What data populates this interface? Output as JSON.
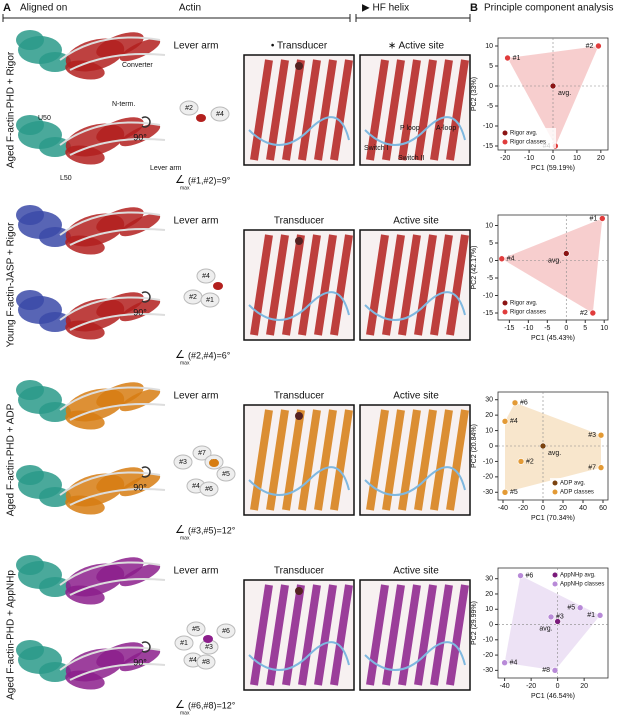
{
  "header": {
    "panel_a": "A",
    "aligned_on": "Aligned on",
    "actin": "Actin",
    "hf_helix": "▶ HF helix",
    "panel_b": "B",
    "pca": "Principle component analysis"
  },
  "rows": [
    {
      "label": "Aged F-actin-PHD + Rigor",
      "lever_arm": "Lever arm",
      "transducer": "• Transducer",
      "active_site": "∗ Active site",
      "rotation": "90°",
      "angle_symbol": "∠",
      "angle_sub": "max",
      "angle": "(#1,#2)=9°",
      "lever_classes": [
        "#2",
        "#4"
      ],
      "annotations": [
        "Converter",
        "N-term.",
        "U50",
        "L50",
        "Lever arm",
        "Switch I",
        "P loop",
        "A-loop",
        "Switch II"
      ]
    },
    {
      "label": "Young F-actin-JASP + Rigor",
      "lever_arm": "Lever arm",
      "transducer": "Transducer",
      "active_site": "Active site",
      "rotation": "90°",
      "angle_symbol": "∠",
      "angle_sub": "max",
      "angle": "(#2,#4)=6°",
      "lever_classes": [
        "#4",
        "#2",
        "#1"
      ],
      "annotations": []
    },
    {
      "label": "Aged F-actin-PHD + ADP",
      "lever_arm": "Lever arm",
      "transducer": "Transducer",
      "active_site": "Active site",
      "rotation": "90°",
      "angle_symbol": "∠",
      "angle_sub": "max",
      "angle": "(#3,#5)=12°",
      "lever_classes": [
        "#7",
        "#3",
        "#1",
        "#5",
        "#4",
        "#6"
      ],
      "annotations": []
    },
    {
      "label": "Aged F-actin-PHD + AppNHp",
      "lever_arm": "Lever arm",
      "transducer": "Transducer",
      "active_site": "Active site",
      "rotation": "90°",
      "angle_symbol": "∠",
      "angle_sub": "max",
      "angle": "(#6,#8)=12°",
      "lever_classes": [
        "#5",
        "#6",
        "#1",
        "#3",
        "#4",
        "#8"
      ],
      "annotations": []
    }
  ],
  "chart_data": [
    {
      "type": "scatter",
      "xlabel": "PC1 (59.19%)",
      "ylabel": "PC2 (33%)",
      "xlim": [
        -23,
        23
      ],
      "ylim": [
        -16,
        12
      ],
      "xticks": [
        -20,
        -10,
        0,
        10,
        20
      ],
      "yticks": [
        10,
        5,
        0,
        -5,
        -10,
        -15
      ],
      "legend": "lower left",
      "series": [
        {
          "name": "Rigor avg.",
          "color": "#8b1414",
          "x": [
            0
          ],
          "values": [
            0
          ],
          "labels": [
            "avg."
          ]
        },
        {
          "name": "Rigor classes",
          "color": "#e03c3c",
          "x": [
            -19,
            19,
            1
          ],
          "values": [
            7,
            10,
            -15
          ],
          "labels": [
            "#1",
            "#2",
            "#4"
          ]
        }
      ]
    },
    {
      "type": "scatter",
      "xlabel": "PC1 (45.43%)",
      "ylabel": "PC2 (42.17%)",
      "xlim": [
        -18,
        11
      ],
      "ylim": [
        -17,
        13
      ],
      "xticks": [
        -15,
        -10,
        -5,
        0,
        5,
        10
      ],
      "yticks": [
        10,
        5,
        0,
        -5,
        -10,
        -15
      ],
      "legend": "lower left",
      "series": [
        {
          "name": "Rigor avg.",
          "color": "#8b1414",
          "x": [
            0
          ],
          "values": [
            2
          ],
          "labels": [
            "avg."
          ]
        },
        {
          "name": "Rigor classes",
          "color": "#e03c3c",
          "x": [
            9.5,
            7,
            -17
          ],
          "values": [
            12,
            -15,
            0.5
          ],
          "labels": [
            "#1",
            "#2",
            "#4"
          ]
        }
      ]
    },
    {
      "type": "scatter",
      "xlabel": "PC1 (70.34%)",
      "ylabel": "PC2 (20.84%)",
      "xlim": [
        -45,
        65
      ],
      "ylim": [
        -35,
        35
      ],
      "xticks": [
        -40,
        -20,
        0,
        20,
        40,
        60
      ],
      "yticks": [
        30,
        20,
        10,
        0,
        -10,
        -20,
        -30
      ],
      "legend": "lower right",
      "series": [
        {
          "name": "ADP avg.",
          "color": "#7a4310",
          "x": [
            0
          ],
          "values": [
            0
          ],
          "labels": [
            "avg."
          ]
        },
        {
          "name": "ADP classes",
          "color": "#e39a35",
          "x": [
            -28,
            -38,
            -22,
            58,
            58,
            -38
          ],
          "values": [
            28,
            16,
            -10,
            7,
            -14,
            -30
          ],
          "labels": [
            "#6",
            "#4",
            "#2",
            "#3",
            "#7",
            "#5"
          ]
        }
      ]
    },
    {
      "type": "scatter",
      "xlabel": "PC1 (46.54%)",
      "ylabel": "PC2 (29.99%)",
      "xlim": [
        -45,
        38
      ],
      "ylim": [
        -35,
        37
      ],
      "xticks": [
        -40,
        -20,
        0,
        20
      ],
      "yticks": [
        30,
        20,
        10,
        0,
        -10,
        -20,
        -30
      ],
      "legend": "upper right",
      "series": [
        {
          "name": "AppNHp avg.",
          "color": "#7a1a7a",
          "x": [
            0
          ],
          "values": [
            2
          ],
          "labels": [
            "avg."
          ]
        },
        {
          "name": "AppNHp classes",
          "color": "#b88ad8",
          "x": [
            -28,
            17,
            32,
            -5,
            -40,
            -2
          ],
          "values": [
            32,
            11,
            6,
            5,
            -25,
            -30
          ],
          "labels": [
            "#6",
            "#5",
            "#1",
            "#3",
            "#4",
            "#8"
          ]
        }
      ]
    }
  ]
}
